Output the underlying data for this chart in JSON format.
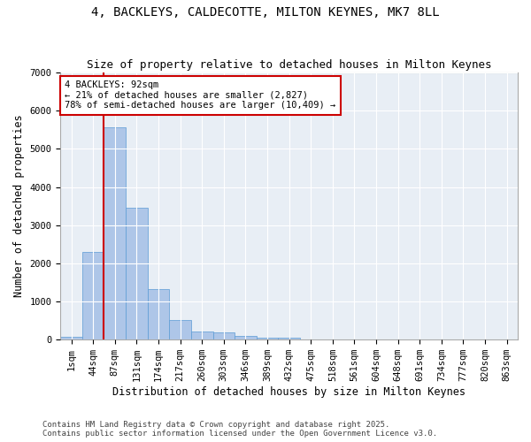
{
  "title1": "4, BACKLEYS, CALDECOTTE, MILTON KEYNES, MK7 8LL",
  "title2": "Size of property relative to detached houses in Milton Keynes",
  "xlabel": "Distribution of detached houses by size in Milton Keynes",
  "ylabel": "Number of detached properties",
  "categories": [
    "1sqm",
    "44sqm",
    "87sqm",
    "131sqm",
    "174sqm",
    "217sqm",
    "260sqm",
    "303sqm",
    "346sqm",
    "389sqm",
    "432sqm",
    "475sqm",
    "518sqm",
    "561sqm",
    "604sqm",
    "648sqm",
    "691sqm",
    "734sqm",
    "777sqm",
    "820sqm",
    "863sqm"
  ],
  "values": [
    80,
    2300,
    5570,
    3450,
    1320,
    520,
    215,
    185,
    95,
    60,
    40,
    0,
    0,
    0,
    0,
    0,
    0,
    0,
    0,
    0,
    0
  ],
  "bar_color": "#aec6e8",
  "bar_edge_color": "#5b9bd5",
  "vline_color": "#cc0000",
  "annotation_text": "4 BACKLEYS: 92sqm\n← 21% of detached houses are smaller (2,827)\n78% of semi-detached houses are larger (10,409) →",
  "annotation_box_color": "#ffffff",
  "annotation_box_edge": "#cc0000",
  "ylim": [
    0,
    7000
  ],
  "yticks": [
    0,
    1000,
    2000,
    3000,
    4000,
    5000,
    6000,
    7000
  ],
  "bg_color": "#e8eef5",
  "footer_line1": "Contains HM Land Registry data © Crown copyright and database right 2025.",
  "footer_line2": "Contains public sector information licensed under the Open Government Licence v3.0.",
  "title1_fontsize": 10,
  "title2_fontsize": 9,
  "xlabel_fontsize": 8.5,
  "ylabel_fontsize": 8.5,
  "tick_fontsize": 7.5,
  "footer_fontsize": 6.5,
  "vline_bin": 2
}
